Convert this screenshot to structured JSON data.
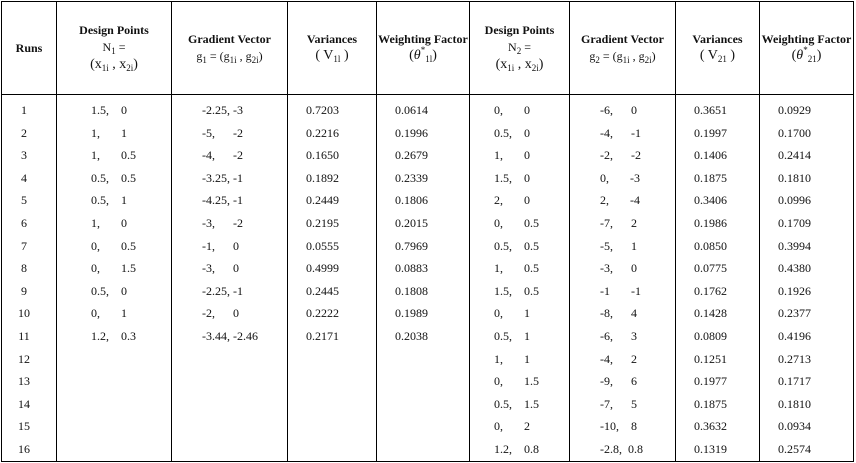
{
  "table": {
    "headers": {
      "runs": "Runs",
      "dp1_title": "Design Points",
      "dp1_math": "N1 =",
      "dp1_pair": "(x1i , x2i)",
      "g1_title": "Gradient Vector",
      "g1_math": "g1 = (g1i , g2i)",
      "v1_title": "Variances",
      "v1_math": "( V1l )",
      "w1_title": "Weighting Factor",
      "w1_math": "(θ*1l)",
      "dp2_title": "Design Points",
      "dp2_math": "N2 =",
      "dp2_pair": "(x1i , x2i)",
      "g2_title": "Gradient Vector",
      "g2_math": "g2 = (g1i , g2i)",
      "v2_title": "Variances",
      "v2_math": "( V21 )",
      "w2_title": "Weighting Factor",
      "w2_math": "(θ*21)"
    },
    "rows": [
      [
        "1",
        "1.5,    0",
        "-2.25, -3",
        "0.7203",
        "0.0614",
        "0,       0",
        "-6,      0",
        "0.3651",
        "0.0929"
      ],
      [
        "2",
        "1,       1",
        "-5,      -2",
        "0.2216",
        "0.1996",
        "0.5,    0",
        "-4,      -1",
        "0.1997",
        "0.1700"
      ],
      [
        "3",
        "1,       0.5",
        "-4,      -2",
        "0.1650",
        "0.2679",
        "1,       0",
        "-2,      -2",
        "0.1406",
        "0.2414"
      ],
      [
        "4",
        "0.5,    0.5",
        "-3.25, -1",
        "0.1892",
        "0.2339",
        "1.5,    0",
        "0,       -3",
        "0.1875",
        "0.1810"
      ],
      [
        "5",
        "0.5,    1",
        "-4.25, -1",
        "0.2449",
        "0.1806",
        "2,       0",
        "2,       -4",
        "0.3406",
        "0.0996"
      ],
      [
        "6",
        "1,       0",
        "-3,      -2",
        "0.2195",
        "0.2015",
        "0,       0.5",
        "-7,      2",
        "0.1986",
        "0.1709"
      ],
      [
        "7",
        "0,       0.5",
        "-1,      0",
        "0.0555",
        "0.7969",
        "0.5,    0.5",
        "-5,      1",
        "0.0850",
        "0.3994"
      ],
      [
        "8",
        "0,       1.5",
        "-3,      0",
        "0.4999",
        "0.0883",
        "1,       0.5",
        "-3,      0",
        "0.0775",
        "0.4380"
      ],
      [
        "9",
        "0.5,    0",
        "-2.25, -1",
        "0.2445",
        "0.1808",
        "1.5,    0.5",
        "-1       -1",
        "0.1762",
        "0.1926"
      ],
      [
        "10",
        "0,       1",
        "-2,      0",
        "0.2222",
        "0.1989",
        "0,       1",
        "-8,      4",
        "0.1428",
        "0.2377"
      ],
      [
        "11",
        "1.2,    0.3",
        "-3.44, -2.46",
        "0.2171",
        "0.2038",
        "0.5,    1",
        "-6,      3",
        "0.0809",
        "0.4196"
      ],
      [
        "12",
        "",
        "",
        "",
        "",
        "1,       1",
        "-4,      2",
        "0.1251",
        "0.2713"
      ],
      [
        "13",
        "",
        "",
        "",
        "",
        "0,       1.5",
        "-9,      6",
        "0.1977",
        "0.1717"
      ],
      [
        "14",
        "",
        "",
        "",
        "",
        "0.5,    1.5",
        "-7,      5",
        "0.1875",
        "0.1810"
      ],
      [
        "15",
        "",
        "",
        "",
        "",
        "0,       2",
        "-10,    8",
        "0.3632",
        "0.0934"
      ],
      [
        "16",
        "",
        "",
        "",
        "",
        "1.2,    0.8",
        "-2.8,  0.8",
        "0.1319",
        "0.2574"
      ]
    ]
  }
}
